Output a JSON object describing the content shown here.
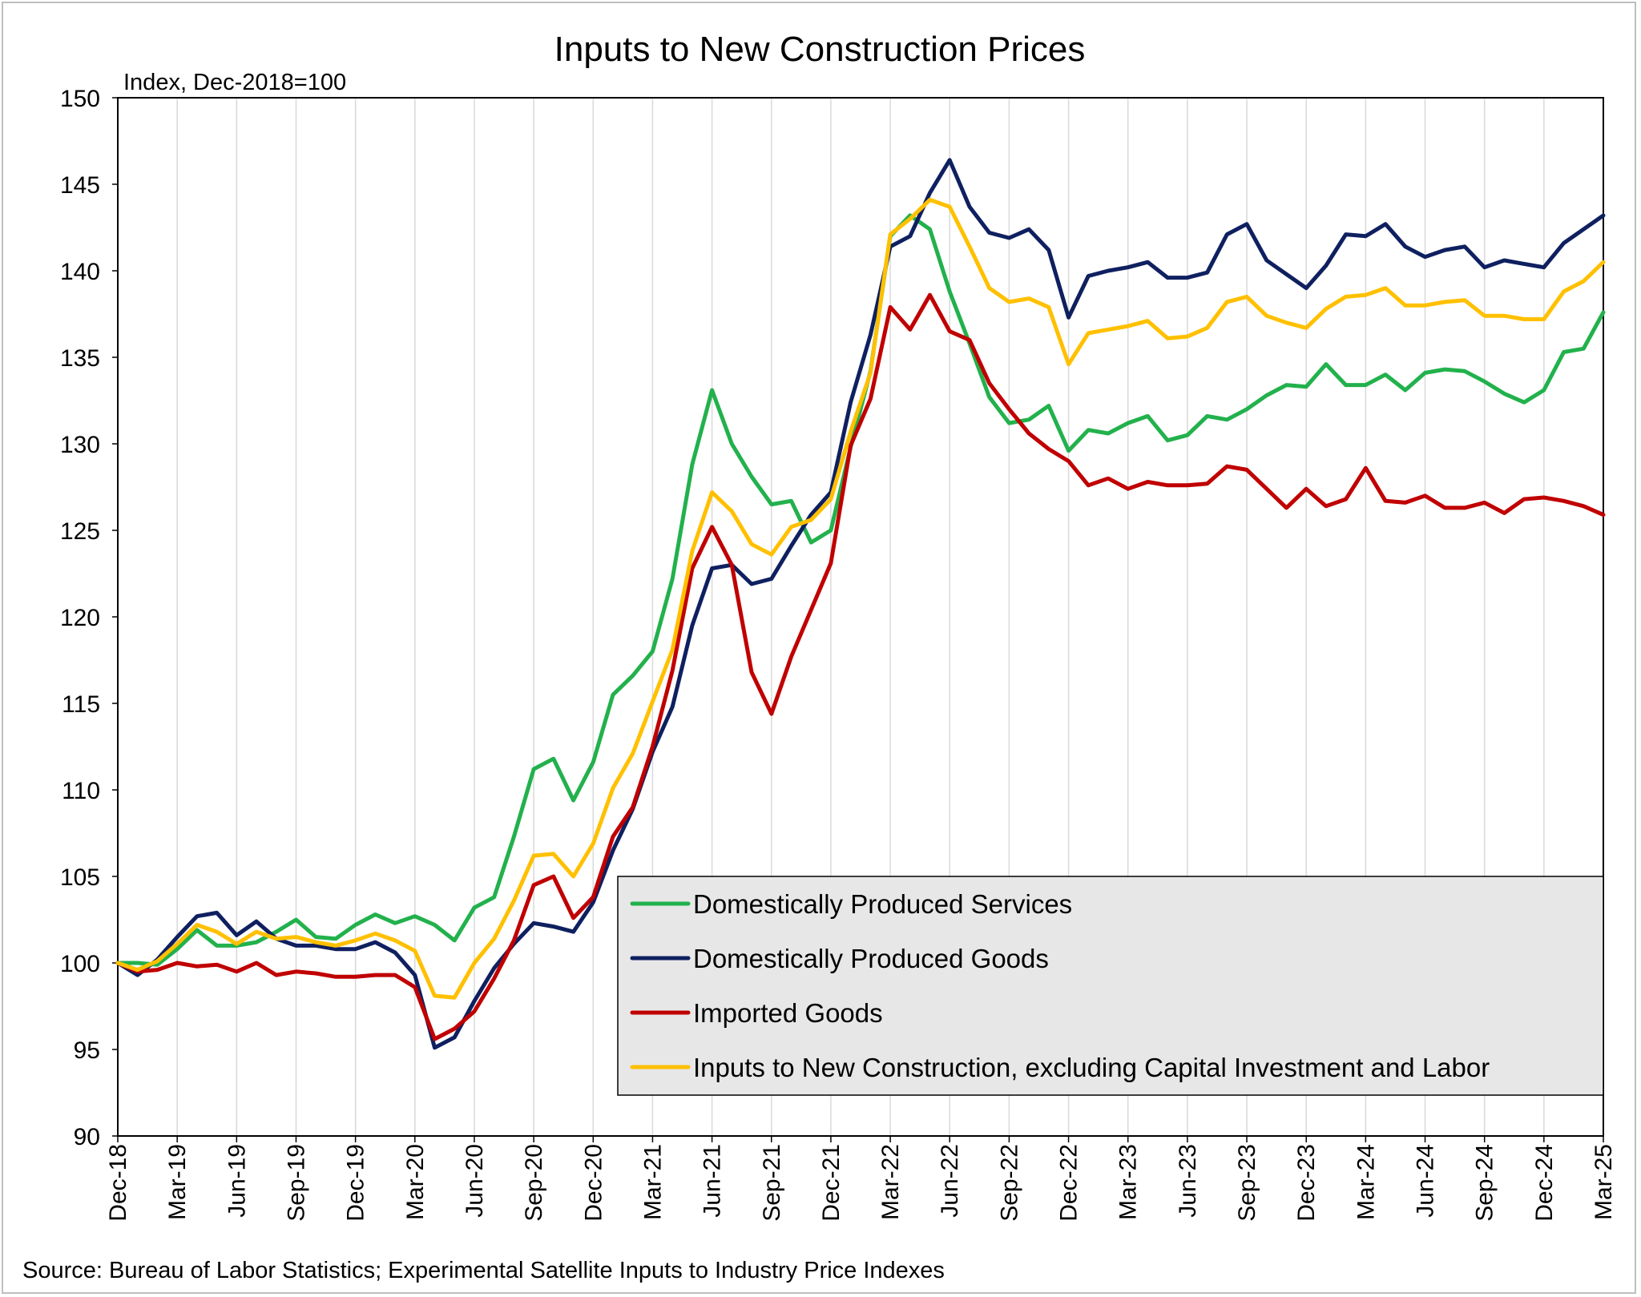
{
  "chart_data": {
    "type": "line",
    "title": "Inputs to New Construction Prices",
    "ylabel": "Index, Dec-2018=100",
    "source": "Source: Bureau of Labor Statistics; Experimental Satellite Inputs to Industry Price Indexes",
    "ylim": [
      90,
      150
    ],
    "yticks": [
      90,
      95,
      100,
      105,
      110,
      115,
      120,
      125,
      130,
      135,
      140,
      145,
      150
    ],
    "xtick_labels": [
      "Dec-18",
      "Mar-19",
      "Jun-19",
      "Sep-19",
      "Dec-19",
      "Mar-20",
      "Jun-20",
      "Sep-20",
      "Dec-20",
      "Mar-21",
      "Jun-21",
      "Sep-21",
      "Dec-21",
      "Mar-22",
      "Jun-22",
      "Sep-22",
      "Dec-22",
      "Mar-23",
      "Jun-23",
      "Sep-23",
      "Dec-23",
      "Mar-24",
      "Jun-24",
      "Sep-24",
      "Dec-24",
      "Mar-25"
    ],
    "x_start": "Dec-2018",
    "x_end": "Mar-2025",
    "grid": "vertical",
    "legend_position": "bottom-right",
    "series": [
      {
        "name": "Domestically Produced Services",
        "color": "#22b14c",
        "values": [
          100.0,
          100.0,
          99.9,
          100.8,
          101.9,
          101.0,
          101.0,
          101.2,
          101.8,
          102.5,
          101.5,
          101.4,
          102.2,
          102.8,
          102.3,
          102.7,
          102.2,
          101.3,
          103.2,
          103.8,
          107.3,
          111.2,
          111.8,
          109.4,
          111.6,
          115.5,
          116.6,
          118.0,
          122.2,
          128.8,
          133.1,
          130.0,
          128.1,
          126.5,
          126.7,
          124.3,
          125.0,
          129.8,
          134.2,
          142.0,
          143.2,
          142.4,
          138.8,
          135.8,
          132.7,
          131.2,
          131.4,
          132.2,
          129.6,
          130.8,
          130.6,
          131.2,
          131.6,
          130.2,
          130.5,
          131.6,
          131.4,
          132.0,
          132.8,
          133.4,
          133.3,
          134.6,
          133.4,
          133.4,
          134.0,
          133.1,
          134.1,
          134.3,
          134.2,
          133.6,
          132.9,
          132.4,
          133.1,
          135.3,
          135.5,
          137.6
        ]
      },
      {
        "name": "Domestically Produced Goods",
        "color": "#0f2060",
        "values": [
          100.0,
          99.3,
          100.2,
          101.5,
          102.7,
          102.9,
          101.6,
          102.4,
          101.4,
          101.0,
          101.0,
          100.8,
          100.8,
          101.2,
          100.6,
          99.3,
          95.1,
          95.7,
          97.8,
          99.7,
          101.1,
          102.3,
          102.1,
          101.8,
          103.5,
          106.5,
          108.9,
          112.2,
          114.8,
          119.5,
          122.8,
          123.0,
          121.9,
          122.2,
          124.1,
          125.9,
          127.2,
          132.4,
          136.3,
          141.4,
          142.0,
          144.5,
          146.4,
          143.7,
          142.2,
          141.9,
          142.4,
          141.2,
          137.3,
          139.7,
          140.0,
          140.2,
          140.5,
          139.6,
          139.6,
          139.9,
          142.1,
          142.7,
          140.6,
          139.8,
          139.0,
          140.3,
          142.1,
          142.0,
          142.7,
          141.4,
          140.8,
          141.2,
          141.4,
          140.2,
          140.6,
          140.4,
          140.2,
          141.6,
          142.4,
          143.2
        ]
      },
      {
        "name": "Imported Goods",
        "color": "#c00000",
        "values": [
          100.0,
          99.5,
          99.6,
          100.0,
          99.8,
          99.9,
          99.5,
          100.0,
          99.3,
          99.5,
          99.4,
          99.2,
          99.2,
          99.3,
          99.3,
          98.6,
          95.6,
          96.2,
          97.2,
          99.1,
          101.3,
          104.5,
          105.0,
          102.6,
          103.8,
          107.3,
          109.0,
          112.5,
          116.9,
          122.8,
          125.2,
          123.0,
          116.8,
          114.4,
          117.7,
          120.4,
          123.1,
          129.9,
          132.6,
          137.9,
          136.6,
          138.6,
          136.5,
          136.0,
          133.5,
          132.0,
          130.6,
          129.7,
          129.0,
          127.6,
          128.0,
          127.4,
          127.8,
          127.6,
          127.6,
          127.7,
          128.7,
          128.5,
          127.4,
          126.3,
          127.4,
          126.4,
          126.8,
          128.6,
          126.7,
          126.6,
          127.0,
          126.3,
          126.3,
          126.6,
          126.0,
          126.8,
          126.9,
          126.7,
          126.4,
          125.9
        ]
      },
      {
        "name": "Inputs to New Construction, excluding Capital Investment and Labor",
        "color": "#ffc000",
        "values": [
          100.0,
          99.6,
          100.1,
          101.1,
          102.2,
          101.8,
          101.1,
          101.8,
          101.4,
          101.5,
          101.2,
          101.0,
          101.3,
          101.7,
          101.3,
          100.7,
          98.1,
          98.0,
          100.0,
          101.4,
          103.6,
          106.2,
          106.3,
          105.0,
          106.9,
          110.1,
          112.1,
          115.1,
          118.1,
          123.8,
          127.2,
          126.1,
          124.2,
          123.6,
          125.2,
          125.6,
          126.8,
          130.7,
          134.1,
          142.1,
          143.0,
          144.1,
          143.7,
          141.4,
          139.0,
          138.2,
          138.4,
          137.9,
          134.6,
          136.4,
          136.6,
          136.8,
          137.1,
          136.1,
          136.2,
          136.7,
          138.2,
          138.5,
          137.4,
          137.0,
          136.7,
          137.8,
          138.5,
          138.6,
          139.0,
          138.0,
          138.0,
          138.2,
          138.3,
          137.4,
          137.4,
          137.2,
          137.2,
          138.8,
          139.4,
          140.5
        ]
      }
    ]
  }
}
